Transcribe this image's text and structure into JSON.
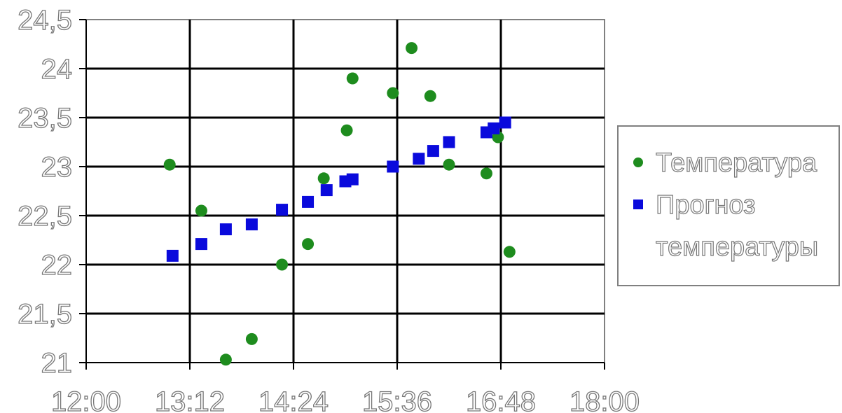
{
  "chart_data": {
    "type": "scatter",
    "x_ticks": [
      "12:00",
      "13:12",
      "14:24",
      "15:36",
      "16:48",
      "18:00"
    ],
    "y_ticks": [
      "21",
      "21,5",
      "22",
      "22,5",
      "23",
      "23,5",
      "24",
      "24,5"
    ],
    "xlim": [
      "12:00",
      "18:00"
    ],
    "ylim": [
      21,
      24.5
    ],
    "grid": true,
    "legend_position": "right",
    "series": [
      {
        "name": "Температура",
        "marker": "circle",
        "color": "#1e8c1e",
        "points": [
          {
            "x": "12:58",
            "y": 23.02
          },
          {
            "x": "13:20",
            "y": 22.55
          },
          {
            "x": "13:37",
            "y": 21.03
          },
          {
            "x": "13:55",
            "y": 21.24
          },
          {
            "x": "14:16",
            "y": 22.0
          },
          {
            "x": "14:34",
            "y": 22.21
          },
          {
            "x": "14:45",
            "y": 22.88
          },
          {
            "x": "15:01",
            "y": 23.37
          },
          {
            "x": "15:05",
            "y": 23.9
          },
          {
            "x": "15:33",
            "y": 23.75
          },
          {
            "x": "15:46",
            "y": 24.21
          },
          {
            "x": "15:59",
            "y": 23.72
          },
          {
            "x": "16:12",
            "y": 23.02
          },
          {
            "x": "16:38",
            "y": 22.93
          },
          {
            "x": "16:46",
            "y": 23.3
          },
          {
            "x": "16:54",
            "y": 22.13
          }
        ]
      },
      {
        "name": "Прогноз температуры",
        "marker": "square",
        "color": "#0a0adc",
        "points": [
          {
            "x": "13:00",
            "y": 22.09
          },
          {
            "x": "13:20",
            "y": 22.21
          },
          {
            "x": "13:37",
            "y": 22.36
          },
          {
            "x": "13:55",
            "y": 22.41
          },
          {
            "x": "14:16",
            "y": 22.56
          },
          {
            "x": "14:34",
            "y": 22.64
          },
          {
            "x": "14:47",
            "y": 22.76
          },
          {
            "x": "15:00",
            "y": 22.85
          },
          {
            "x": "15:05",
            "y": 22.87
          },
          {
            "x": "15:33",
            "y": 23.0
          },
          {
            "x": "15:51",
            "y": 23.08
          },
          {
            "x": "16:01",
            "y": 23.16
          },
          {
            "x": "16:12",
            "y": 23.25
          },
          {
            "x": "16:38",
            "y": 23.35
          },
          {
            "x": "16:43",
            "y": 23.39
          },
          {
            "x": "16:51",
            "y": 23.45
          }
        ]
      }
    ]
  }
}
